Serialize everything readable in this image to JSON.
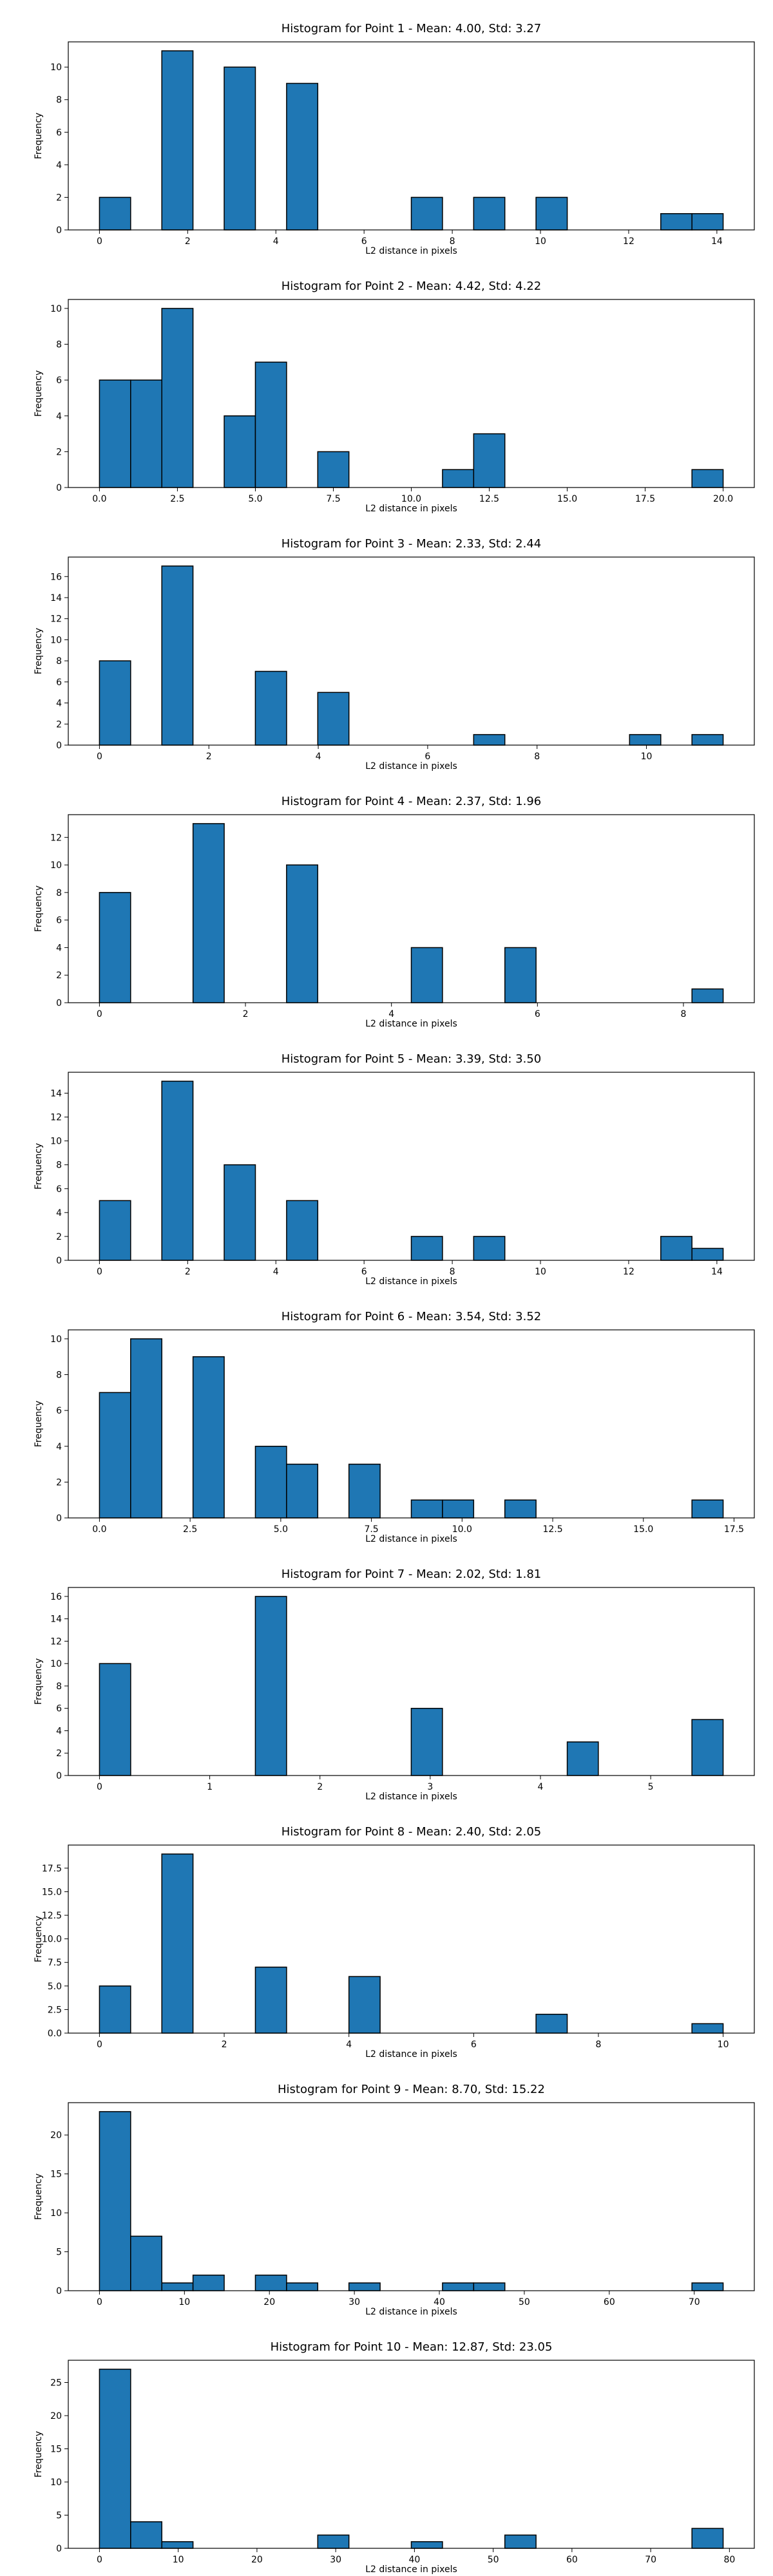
{
  "chart_data": [
    {
      "type": "histogram",
      "title": "Histogram for Point 1 - Mean: 4.00, Std: 3.27",
      "xlabel": "L2 distance in pixels",
      "ylabel": "Frequency",
      "color": "#1f77b4",
      "edgecolor": "#000000",
      "bins": [
        0,
        0.707,
        1.414,
        2.121,
        2.828,
        3.536,
        4.243,
        4.95,
        5.657,
        6.364,
        7.071,
        7.778,
        8.485,
        9.192,
        9.899,
        10.607,
        11.314,
        12.021,
        12.728,
        13.435,
        14.142
      ],
      "counts": [
        2,
        0,
        11,
        0,
        10,
        0,
        9,
        0,
        0,
        0,
        2,
        0,
        2,
        0,
        2,
        0,
        0,
        0,
        1,
        1
      ],
      "xlim": [
        -0.707,
        14.849
      ],
      "xticks": [
        0,
        2,
        4,
        6,
        8,
        10,
        12,
        14
      ],
      "ylim": [
        0,
        11.55
      ],
      "yticks": [
        0,
        2,
        4,
        6,
        8,
        10
      ]
    },
    {
      "type": "histogram",
      "title": "Histogram for Point 2 - Mean: 4.42, Std: 4.22",
      "xlabel": "L2 distance in pixels",
      "ylabel": "Frequency",
      "color": "#1f77b4",
      "edgecolor": "#000000",
      "bins": [
        0,
        1,
        2,
        3,
        4,
        5,
        6,
        7,
        8,
        9,
        10,
        11,
        12,
        13,
        14,
        15,
        16,
        17,
        18,
        19,
        20
      ],
      "counts": [
        6,
        6,
        10,
        0,
        4,
        7,
        0,
        2,
        0,
        0,
        0,
        1,
        3,
        0,
        0,
        0,
        0,
        0,
        0,
        1
      ],
      "xlim": [
        -1,
        21
      ],
      "xticks": [
        {
          "value": 0,
          "label": "0.0"
        },
        2.5,
        {
          "value": 5,
          "label": "5.0"
        },
        7.5,
        {
          "value": 10,
          "label": "10.0"
        },
        12.5,
        {
          "value": 15,
          "label": "15.0"
        },
        17.5,
        {
          "value": 20,
          "label": "20.0"
        }
      ],
      "ylim": [
        0,
        10.5
      ],
      "yticks": [
        0,
        2,
        4,
        6,
        8,
        10
      ]
    },
    {
      "type": "histogram",
      "title": "Histogram for Point 3 - Mean: 2.33, Std: 2.44",
      "xlabel": "L2 distance in pixels",
      "ylabel": "Frequency",
      "color": "#1f77b4",
      "edgecolor": "#000000",
      "bins": [
        0,
        0.57,
        1.14,
        1.71,
        2.28,
        2.85,
        3.421,
        3.991,
        4.561,
        5.131,
        5.701,
        6.271,
        6.841,
        7.411,
        7.981,
        8.551,
        9.121,
        9.691,
        10.262,
        10.832,
        11.402
      ],
      "counts": [
        8,
        0,
        17,
        0,
        0,
        7,
        0,
        5,
        0,
        0,
        0,
        0,
        1,
        0,
        0,
        0,
        0,
        1,
        0,
        1
      ],
      "xlim": [
        -0.57,
        11.972
      ],
      "xticks": [
        0,
        2,
        4,
        6,
        8,
        10
      ],
      "ylim": [
        0,
        17.85
      ],
      "yticks": [
        0,
        2,
        4,
        6,
        8,
        10,
        12,
        14,
        16
      ]
    },
    {
      "type": "histogram",
      "title": "Histogram for Point 4 - Mean: 2.37, Std: 1.96",
      "xlabel": "L2 distance in pixels",
      "ylabel": "Frequency",
      "color": "#1f77b4",
      "edgecolor": "#000000",
      "bins": [
        0,
        0.427,
        0.854,
        1.282,
        1.709,
        2.136,
        2.563,
        2.99,
        3.418,
        3.845,
        4.272,
        4.699,
        5.126,
        5.554,
        5.981,
        6.408,
        6.835,
        7.262,
        7.69,
        8.117,
        8.544
      ],
      "counts": [
        8,
        0,
        0,
        13,
        0,
        0,
        10,
        0,
        0,
        0,
        4,
        0,
        0,
        4,
        0,
        0,
        0,
        0,
        0,
        1
      ],
      "xlim": [
        -0.427,
        8.971
      ],
      "xticks": [
        0,
        2,
        4,
        6,
        8
      ],
      "ylim": [
        0,
        13.65
      ],
      "yticks": [
        0,
        2,
        4,
        6,
        8,
        10,
        12
      ]
    },
    {
      "type": "histogram",
      "title": "Histogram for Point 5 - Mean: 3.39, Std: 3.50",
      "xlabel": "L2 distance in pixels",
      "ylabel": "Frequency",
      "color": "#1f77b4",
      "edgecolor": "#000000",
      "bins": [
        0,
        0.707,
        1.414,
        2.121,
        2.828,
        3.536,
        4.243,
        4.95,
        5.657,
        6.364,
        7.071,
        7.778,
        8.485,
        9.192,
        9.899,
        10.607,
        11.314,
        12.021,
        12.728,
        13.435,
        14.142
      ],
      "counts": [
        5,
        0,
        15,
        0,
        8,
        0,
        5,
        0,
        0,
        0,
        2,
        0,
        2,
        0,
        0,
        0,
        0,
        0,
        2,
        1
      ],
      "xlim": [
        -0.707,
        14.849
      ],
      "xticks": [
        0,
        2,
        4,
        6,
        8,
        10,
        12,
        14
      ],
      "ylim": [
        0,
        15.75
      ],
      "yticks": [
        0,
        2,
        4,
        6,
        8,
        10,
        12,
        14
      ]
    },
    {
      "type": "histogram",
      "title": "Histogram for Point 6 - Mean: 3.54, Std: 3.52",
      "xlabel": "L2 distance in pixels",
      "ylabel": "Frequency",
      "color": "#1f77b4",
      "edgecolor": "#000000",
      "bins": [
        0,
        0.86,
        1.72,
        2.58,
        3.44,
        4.3,
        5.16,
        6.02,
        6.88,
        7.74,
        8.6,
        9.46,
        10.32,
        11.18,
        12.04,
        12.9,
        13.76,
        14.62,
        15.48,
        16.34,
        17.2
      ],
      "counts": [
        7,
        10,
        0,
        9,
        0,
        4,
        3,
        0,
        3,
        0,
        1,
        1,
        0,
        1,
        0,
        0,
        0,
        0,
        0,
        1
      ],
      "xlim": [
        -0.86,
        18.06
      ],
      "xticks": [
        {
          "value": 0,
          "label": "0.0"
        },
        2.5,
        {
          "value": 5,
          "label": "5.0"
        },
        7.5,
        {
          "value": 10,
          "label": "10.0"
        },
        12.5,
        {
          "value": 15,
          "label": "15.0"
        },
        17.5
      ],
      "ylim": [
        0,
        10.5
      ],
      "yticks": [
        0,
        2,
        4,
        6,
        8,
        10
      ]
    },
    {
      "type": "histogram",
      "title": "Histogram for Point 7 - Mean: 2.02, Std: 1.81",
      "xlabel": "L2 distance in pixels",
      "ylabel": "Frequency",
      "color": "#1f77b4",
      "edgecolor": "#000000",
      "bins": [
        0,
        0.283,
        0.566,
        0.849,
        1.131,
        1.414,
        1.697,
        1.98,
        2.263,
        2.546,
        2.828,
        3.111,
        3.394,
        3.677,
        3.96,
        4.243,
        4.525,
        4.808,
        5.091,
        5.374,
        5.657
      ],
      "counts": [
        10,
        0,
        0,
        0,
        0,
        16,
        0,
        0,
        0,
        0,
        6,
        0,
        0,
        0,
        0,
        3,
        0,
        0,
        0,
        5
      ],
      "xlim": [
        -0.283,
        5.94
      ],
      "xticks": [
        0,
        1,
        2,
        3,
        4,
        5
      ],
      "ylim": [
        0,
        16.8
      ],
      "yticks": [
        0,
        2,
        4,
        6,
        8,
        10,
        12,
        14,
        16
      ]
    },
    {
      "type": "histogram",
      "title": "Histogram for Point 8 - Mean: 2.40, Std: 2.05",
      "xlabel": "L2 distance in pixels",
      "ylabel": "Frequency",
      "color": "#1f77b4",
      "edgecolor": "#000000",
      "bins": [
        0,
        0.5,
        1,
        1.5,
        2,
        2.5,
        3,
        3.5,
        4,
        4.5,
        5,
        5.5,
        6,
        6.5,
        7,
        7.5,
        8,
        8.5,
        9,
        9.5,
        10
      ],
      "counts": [
        5,
        0,
        19,
        0,
        0,
        7,
        0,
        0,
        6,
        0,
        0,
        0,
        0,
        0,
        2,
        0,
        0,
        0,
        0,
        1
      ],
      "xlim": [
        -0.5,
        10.5
      ],
      "xticks": [
        0,
        2,
        4,
        6,
        8,
        10
      ],
      "ylim": [
        0,
        19.95
      ],
      "yticks": [
        {
          "value": 0,
          "label": "0.0"
        },
        2.5,
        {
          "value": 5,
          "label": "5.0"
        },
        7.5,
        {
          "value": 10,
          "label": "10.0"
        },
        12.5,
        {
          "value": 15,
          "label": "15.0"
        },
        17.5
      ]
    },
    {
      "type": "histogram",
      "title": "Histogram for Point 9 - Mean: 8.70, Std: 15.22",
      "xlabel": "L2 distance in pixels",
      "ylabel": "Frequency",
      "color": "#1f77b4",
      "edgecolor": "#000000",
      "bins": [
        0,
        3.67,
        7.34,
        11.01,
        14.68,
        18.35,
        22.02,
        25.69,
        29.36,
        33.03,
        36.7,
        40.37,
        44.04,
        47.71,
        51.38,
        55.05,
        58.72,
        62.39,
        66.06,
        69.73,
        73.4
      ],
      "counts": [
        23,
        7,
        1,
        2,
        0,
        2,
        1,
        0,
        1,
        0,
        0,
        1,
        1,
        0,
        0,
        0,
        0,
        0,
        0,
        1
      ],
      "xlim": [
        -3.67,
        77.07
      ],
      "xticks": [
        0,
        10,
        20,
        30,
        40,
        50,
        60,
        70
      ],
      "ylim": [
        0,
        24.15
      ],
      "yticks": [
        0,
        5,
        10,
        15,
        20
      ]
    },
    {
      "type": "histogram",
      "title": "Histogram for Point 10 - Mean: 12.87, Std: 23.05",
      "xlabel": "L2 distance in pixels",
      "ylabel": "Frequency",
      "color": "#1f77b4",
      "edgecolor": "#000000",
      "bins": [
        0,
        3.96,
        7.92,
        11.88,
        15.84,
        19.8,
        23.76,
        27.72,
        31.68,
        35.64,
        39.6,
        43.56,
        47.52,
        51.48,
        55.44,
        59.4,
        63.36,
        67.32,
        71.28,
        75.24,
        79.2
      ],
      "counts": [
        27,
        4,
        1,
        0,
        0,
        0,
        0,
        2,
        0,
        0,
        1,
        0,
        0,
        2,
        0,
        0,
        0,
        0,
        0,
        3
      ],
      "xlim": [
        -3.96,
        83.16
      ],
      "xticks": [
        0,
        10,
        20,
        30,
        40,
        50,
        60,
        70,
        80
      ],
      "ylim": [
        0,
        28.35
      ],
      "yticks": [
        0,
        5,
        10,
        15,
        20,
        25
      ]
    }
  ]
}
